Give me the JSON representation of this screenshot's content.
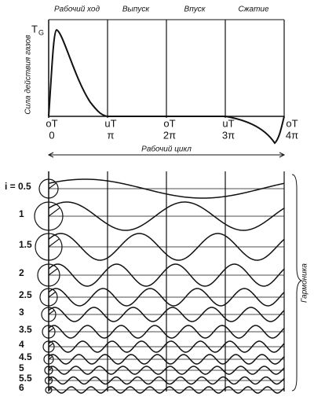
{
  "header": {
    "strokes": [
      "Рабочий ход",
      "Выпуск",
      "Впуск",
      "Сжатие"
    ],
    "force_symbol": "T",
    "force_subscript": "G",
    "y_label": "Сила действия газов"
  },
  "axis_ticks": [
    {
      "top": "оТ",
      "bottom": "0"
    },
    {
      "top": "uT",
      "bottom": "π"
    },
    {
      "top": "оТ",
      "bottom": "2π"
    },
    {
      "top": "uT",
      "bottom": "3π"
    },
    {
      "top": "оТ",
      "bottom": "4π"
    }
  ],
  "cycle_label": "Рабочий цикл",
  "harmonics": [
    "i = 0.5",
    "1",
    "1.5",
    "2",
    "2.5",
    "3",
    "3.5",
    "4",
    "4.5",
    "5",
    "5.5",
    "6"
  ],
  "harmonics_label": "Гармоника"
}
